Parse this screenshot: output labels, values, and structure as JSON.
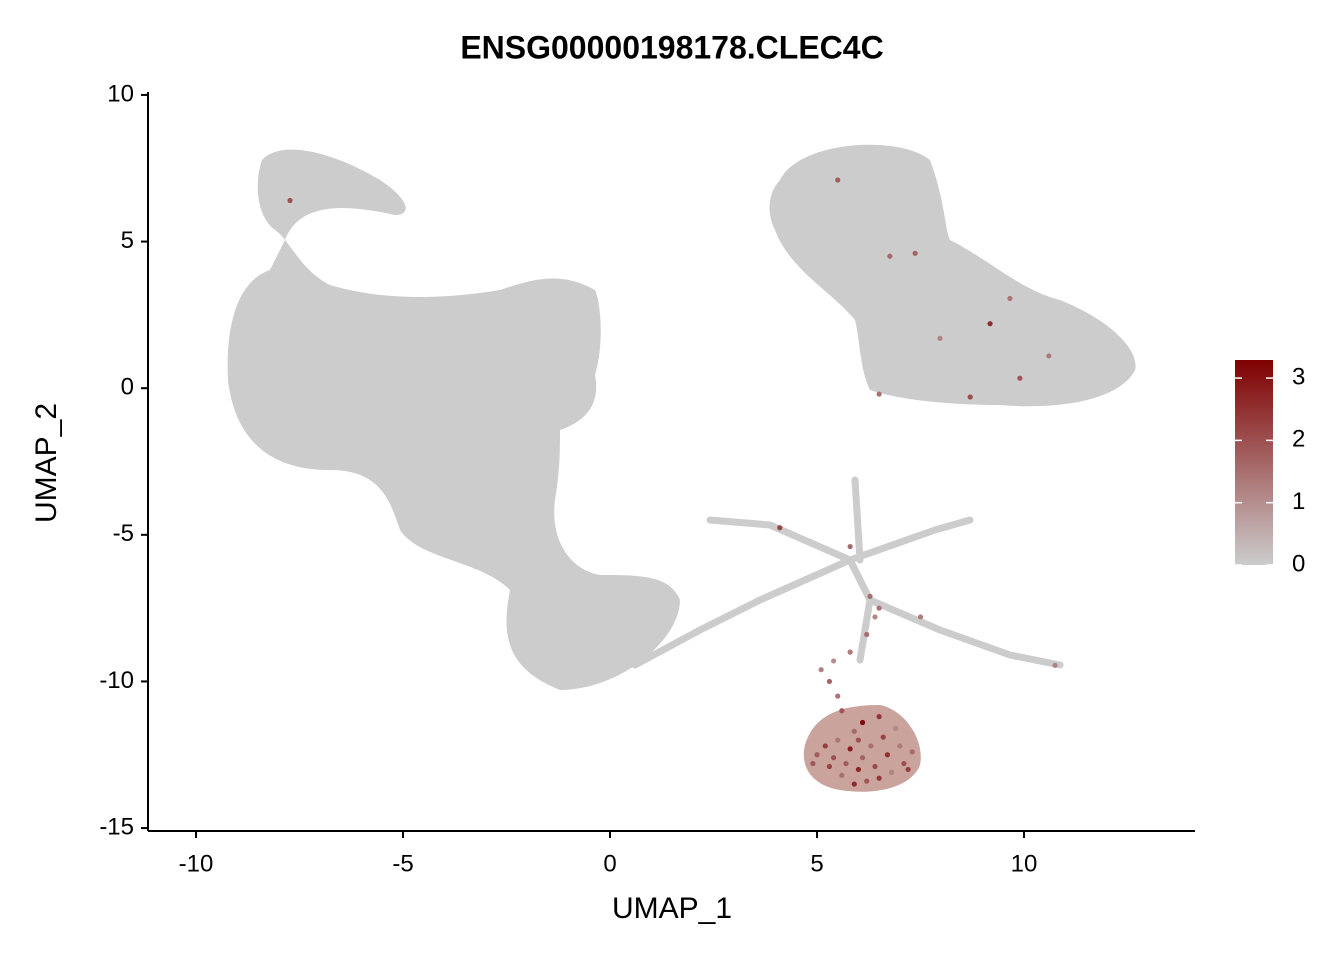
{
  "chart_data": {
    "type": "scatter",
    "title": "ENSG00000198178.CLEC4C",
    "x_label": "UMAP_1",
    "y_label": "UMAP_2",
    "xlim": [
      -11.16,
      14.13
    ],
    "ylim": [
      -15.1,
      10.1
    ],
    "xticks": [
      -10,
      -5,
      0,
      5,
      10
    ],
    "yticks": [
      -15,
      -10,
      -5,
      0,
      5,
      10
    ],
    "x": [
      5.0,
      5.3,
      5.6,
      5.9,
      6.2,
      6.5,
      6.8,
      7.1,
      7.3,
      5.2,
      5.5,
      5.8,
      6.1,
      6.4,
      6.7,
      7.0,
      5.4,
      5.7,
      6.0,
      6.3,
      6.6,
      6.9,
      6.5,
      5.9,
      6.1,
      5.6,
      5.5,
      5.3,
      5.1,
      5.4,
      5.8,
      6.2,
      6.4,
      4.9,
      7.2,
      6.0,
      9.18,
      7.97,
      8.7,
      6.5,
      5.5,
      9.66,
      10.6,
      6.76,
      7.37,
      9.9,
      -7.73,
      4.1,
      5.8,
      6.28,
      6.5,
      7.5,
      10.75
    ],
    "y": [
      -12.5,
      -12.9,
      -13.2,
      -13.5,
      -13.4,
      -13.3,
      -13.1,
      -12.8,
      -12.4,
      -12.2,
      -12.0,
      -12.3,
      -12.6,
      -12.9,
      -12.5,
      -12.2,
      -12.6,
      -12.8,
      -13.0,
      -12.2,
      -11.9,
      -11.6,
      -11.2,
      -11.7,
      -11.4,
      -11.0,
      -10.5,
      -10.0,
      -9.6,
      -9.3,
      -9.0,
      -8.4,
      -7.8,
      -12.8,
      -13.0,
      -12.0,
      2.2,
      1.7,
      -0.3,
      -0.2,
      7.1,
      3.06,
      1.1,
      4.5,
      4.6,
      0.34,
      6.4,
      -4.76,
      -5.4,
      -7.1,
      -7.5,
      -7.8,
      -9.45
    ],
    "values": [
      1.8,
      2.2,
      1.5,
      2.6,
      1.9,
      2.4,
      1.2,
      2.0,
      1.6,
      2.3,
      1.4,
      2.8,
      1.7,
      2.1,
      2.5,
      1.3,
      2.0,
      1.8,
      2.7,
      1.5,
      2.2,
      1.1,
      2.4,
      1.6,
      3.2,
      1.9,
      1.4,
      1.7,
      1.2,
      1.0,
      1.3,
      1.5,
      1.1,
      1.9,
      2.3,
      2.0,
      2.6,
      1.2,
      2.0,
      1.5,
      1.8,
      1.4,
      1.3,
      1.6,
      1.7,
      1.9,
      2.0,
      2.2,
      1.6,
      1.5,
      1.4,
      1.3,
      1.2
    ],
    "color_scale": {
      "low": "#cccccc",
      "high": "#7f0000",
      "lim": [
        0,
        3.29
      ],
      "ticks": [
        0,
        1,
        2,
        3
      ]
    }
  }
}
